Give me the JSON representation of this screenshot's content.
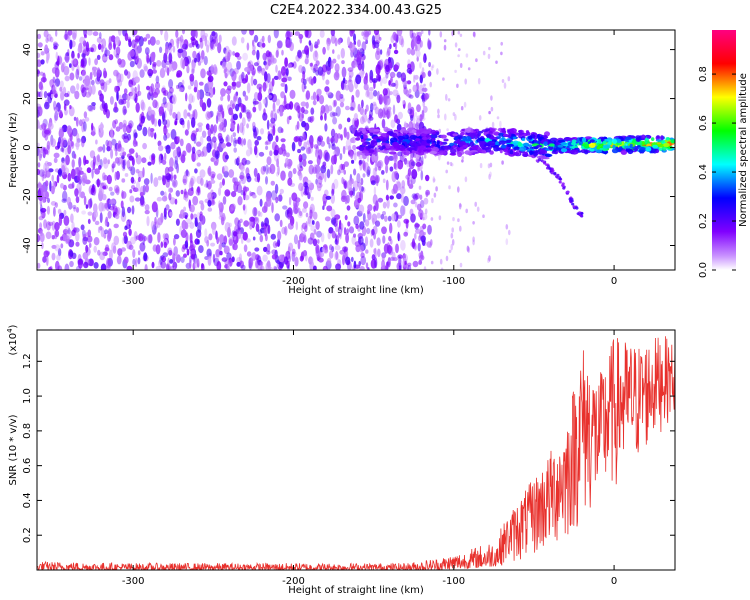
{
  "figure": {
    "title": "C2E4.2022.334.00.43.G25"
  },
  "chart_data": [
    {
      "type": "heatmap",
      "title": "C2E4.2022.334.00.43.G25",
      "xlabel": "Height of straight line (km)",
      "ylabel": "Frequency (Hz)",
      "xlim": [
        -360,
        38
      ],
      "ylim": [
        -50,
        48
      ],
      "xticks": [
        -300,
        -200,
        -100,
        0
      ],
      "yticks": [
        -40,
        -20,
        0,
        20,
        40
      ],
      "colorbar": {
        "label": "Normalized spectral amplitude",
        "range": [
          0,
          0.98
        ],
        "ticks": [
          0.0,
          0.2,
          0.4,
          0.6,
          0.8
        ],
        "colormap": [
          "#ffffff",
          "#8000ff",
          "#0000ff",
          "#00ffff",
          "#00ff00",
          "#ffff00",
          "#ff0000",
          "#ff0080"
        ]
      },
      "ridge": [
        {
          "x": -120,
          "y": 2.5,
          "amp": 0.35
        },
        {
          "x": -100,
          "y": 2.0,
          "amp": 0.4
        },
        {
          "x": -80,
          "y": 3.0,
          "amp": 0.45
        },
        {
          "x": -60,
          "y": 2.0,
          "amp": 0.5
        },
        {
          "x": -40,
          "y": 0.5,
          "amp": 0.55
        },
        {
          "x": -20,
          "y": 1.0,
          "amp": 0.75
        },
        {
          "x": 0,
          "y": 1.0,
          "amp": 0.8
        },
        {
          "x": 20,
          "y": 1.5,
          "amp": 0.85
        },
        {
          "x": 38,
          "y": 1.5,
          "amp": 0.85
        }
      ],
      "branch": [
        {
          "x": -45,
          "y": -5
        },
        {
          "x": -35,
          "y": -12
        },
        {
          "x": -28,
          "y": -20
        },
        {
          "x": -22,
          "y": -27
        }
      ]
    },
    {
      "type": "line",
      "xlabel": "Height of straight line (km)",
      "ylabel": "SNR (10 * v/v)",
      "yscale_note": "(x10",
      "yscale_exp": "4",
      "xlim": [
        -360,
        38
      ],
      "ylim": [
        0,
        1.38
      ],
      "xticks": [
        -300,
        -200,
        -100,
        0
      ],
      "yticks": [
        0.2,
        0.4,
        0.6,
        0.8,
        1.0,
        1.2
      ],
      "color": "#e8302c",
      "envelope": [
        {
          "x": -360,
          "lo": 0.0,
          "hi": 0.05
        },
        {
          "x": -300,
          "lo": 0.0,
          "hi": 0.04
        },
        {
          "x": -200,
          "lo": 0.0,
          "hi": 0.04
        },
        {
          "x": -130,
          "lo": 0.0,
          "hi": 0.04
        },
        {
          "x": -110,
          "lo": 0.0,
          "hi": 0.07
        },
        {
          "x": -90,
          "lo": 0.01,
          "hi": 0.12
        },
        {
          "x": -75,
          "lo": 0.02,
          "hi": 0.18
        },
        {
          "x": -60,
          "lo": 0.04,
          "hi": 0.4
        },
        {
          "x": -45,
          "lo": 0.08,
          "hi": 0.6
        },
        {
          "x": -30,
          "lo": 0.15,
          "hi": 0.85
        },
        {
          "x": -20,
          "lo": 0.25,
          "hi": 1.32
        },
        {
          "x": -10,
          "lo": 0.35,
          "hi": 1.1
        },
        {
          "x": 0,
          "lo": 0.45,
          "hi": 1.35
        },
        {
          "x": 15,
          "lo": 0.6,
          "hi": 1.3
        },
        {
          "x": 30,
          "lo": 0.8,
          "hi": 1.36
        },
        {
          "x": 38,
          "lo": 0.9,
          "hi": 1.3
        }
      ]
    }
  ]
}
